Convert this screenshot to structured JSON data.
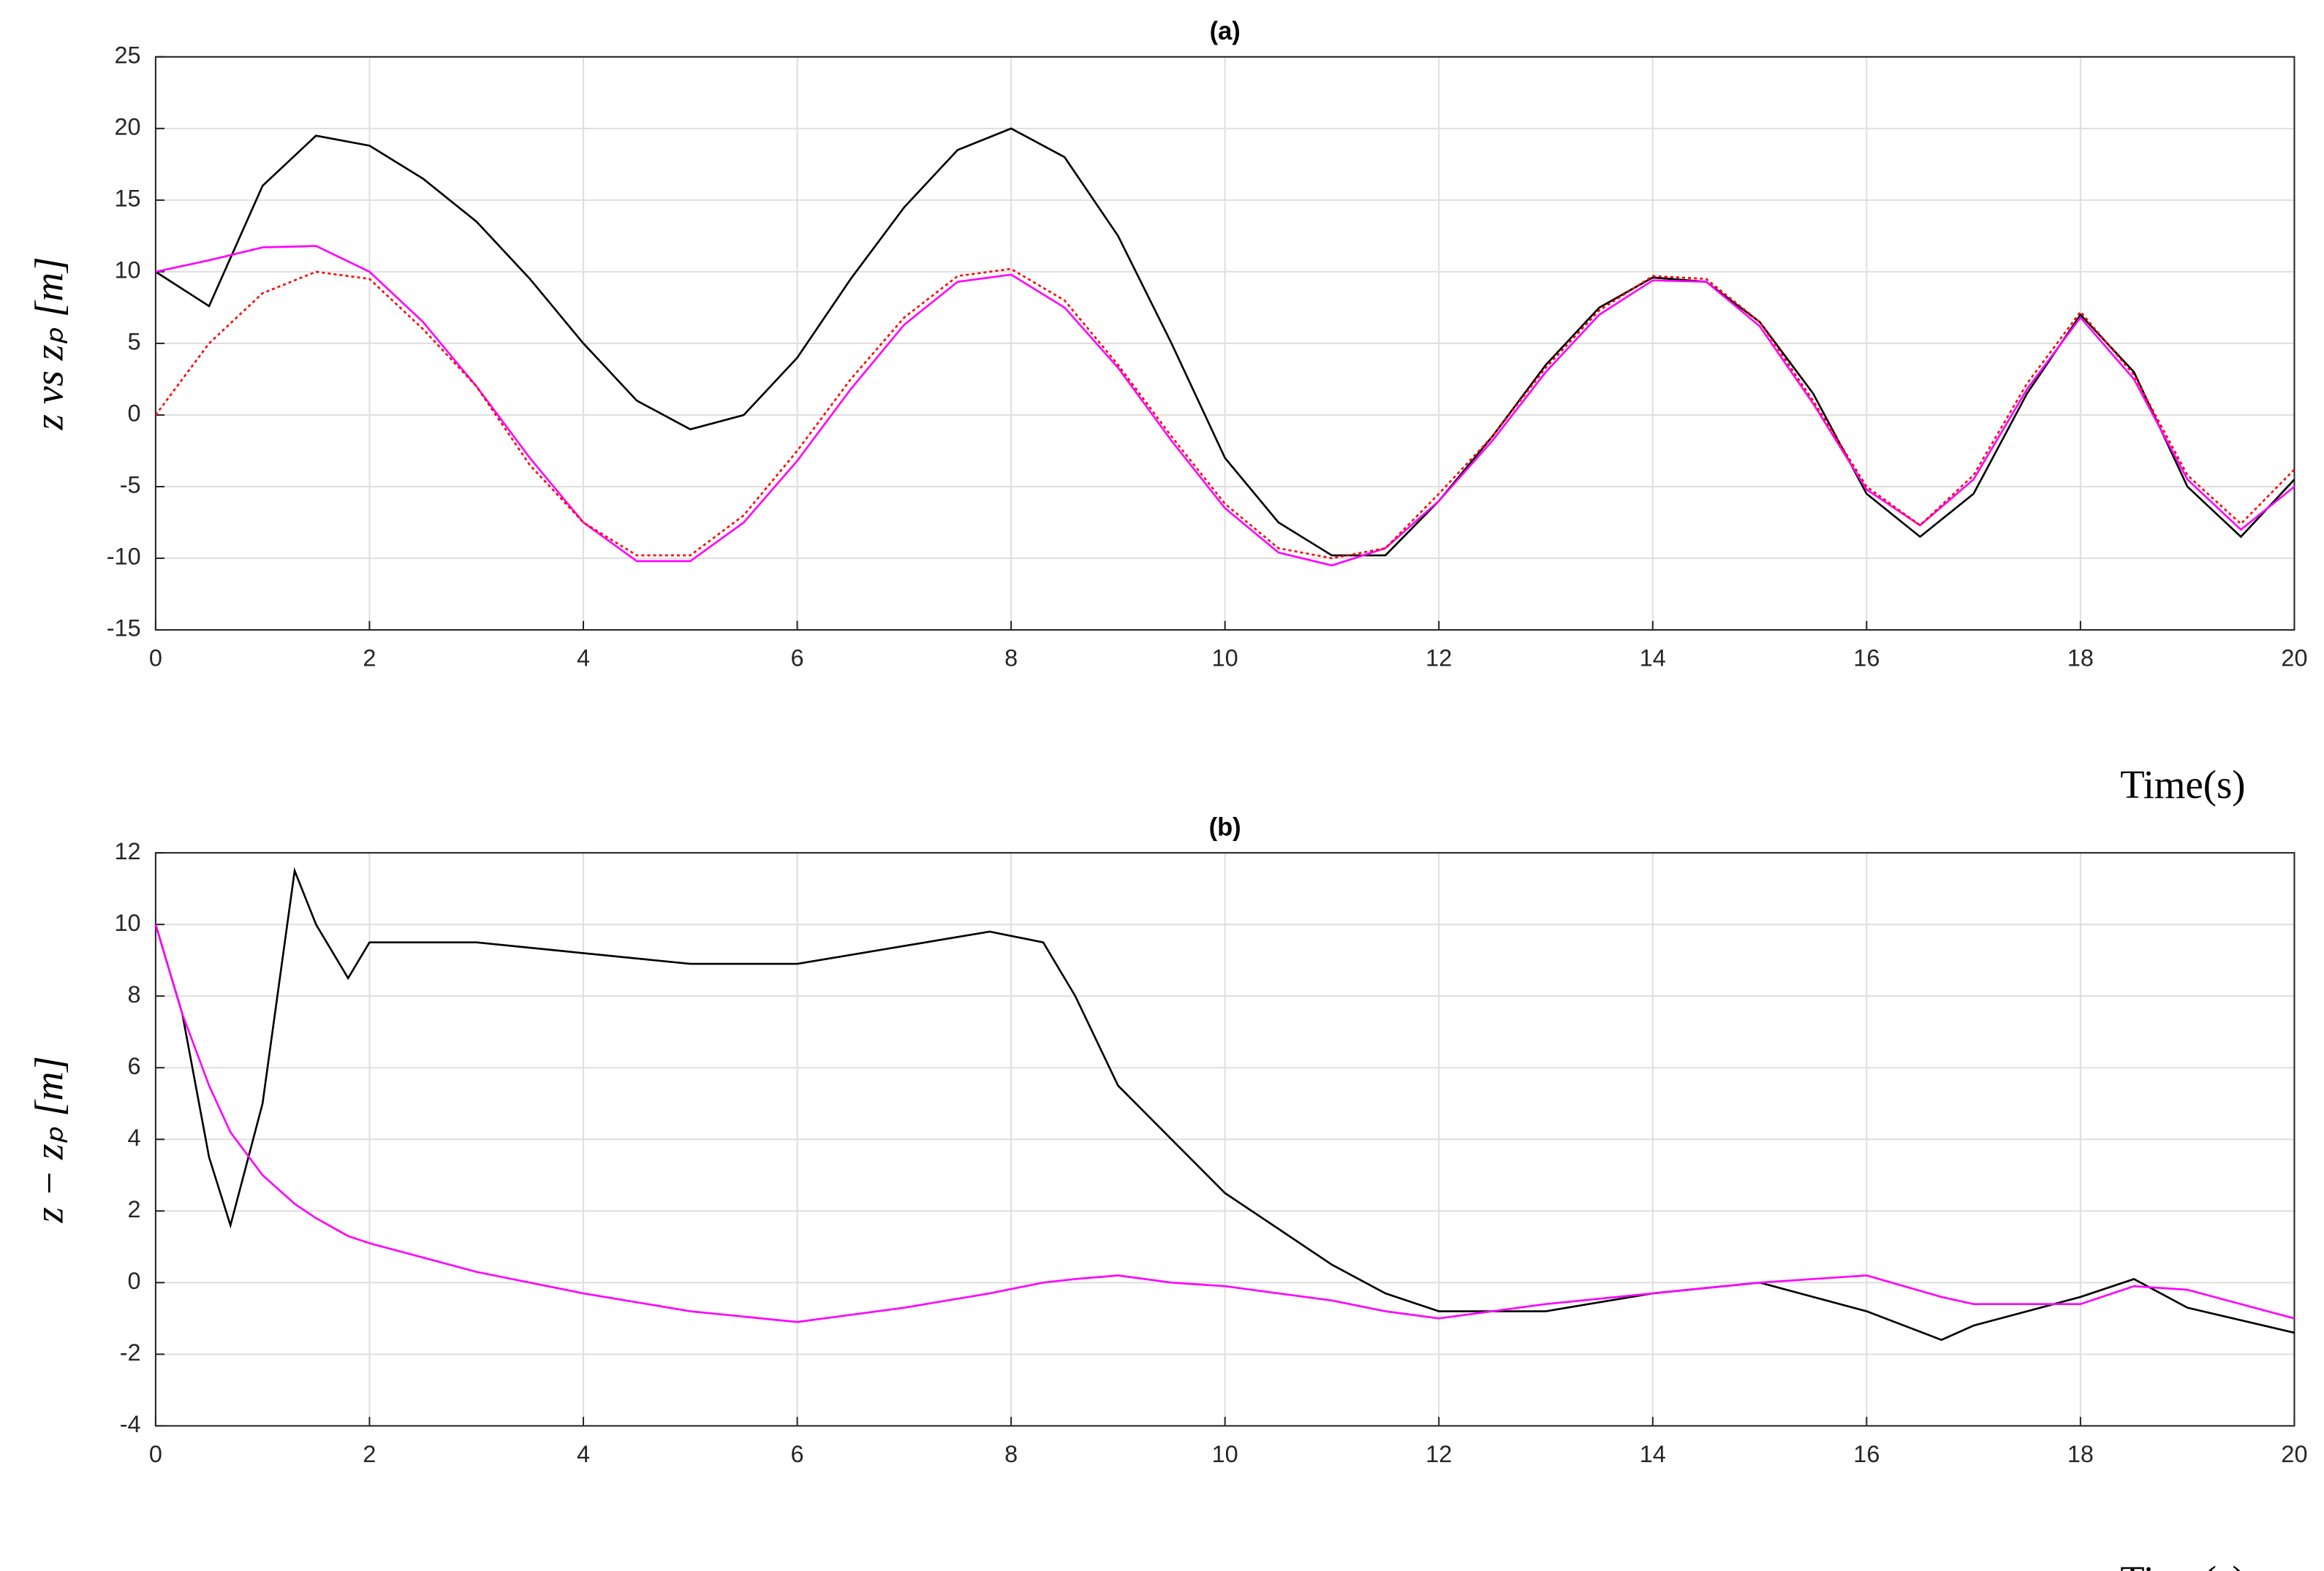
{
  "chart_data": [
    {
      "type": "line",
      "title": "(a)",
      "xlabel": "Time(s)",
      "ylabel": "z  vs  zₚ [m]",
      "x": [
        0,
        0.5,
        1,
        1.5,
        2,
        2.5,
        3,
        3.5,
        4,
        4.5,
        5,
        5.5,
        6,
        6.5,
        7,
        7.5,
        8,
        8.5,
        9,
        9.5,
        10,
        10.5,
        11,
        11.5,
        12,
        12.5,
        13,
        13.5,
        14,
        14.5,
        15,
        15.5,
        16,
        16.5,
        17,
        17.5,
        18,
        18.5,
        19,
        19.5,
        20
      ],
      "series": [
        {
          "color": "#000000",
          "values": [
            10,
            7.6,
            16,
            19.5,
            18.8,
            16.5,
            13.5,
            9.5,
            5.0,
            1.0,
            -1.0,
            0.0,
            4.0,
            9.5,
            14.5,
            18.5,
            20.0,
            18.0,
            12.5,
            5.0,
            -3.0,
            -7.5,
            -9.8,
            -9.8,
            -6,
            -1.5,
            3.5,
            7.5,
            9.6,
            9.3,
            6.5,
            1.5,
            -5.5,
            -8.5,
            -5.5,
            1.5,
            7.0,
            3.0,
            -5.0,
            -8.5,
            -4.5
          ]
        },
        {
          "color": "#ff00ff",
          "values": [
            10,
            10.8,
            11.7,
            11.8,
            10,
            6.5,
            2.0,
            -3.0,
            -7.5,
            -10.2,
            -10.2,
            -7.5,
            -3.2,
            1.8,
            6.3,
            9.3,
            9.8,
            7.5,
            3.3,
            -1.8,
            -6.5,
            -9.6,
            -10.5,
            -9.3,
            -6.0,
            -1.8,
            3.0,
            7.0,
            9.4,
            9.3,
            6.2,
            0.8,
            -5.2,
            -7.7,
            -4.5,
            1.8,
            6.8,
            2.5,
            -4.5,
            -8.0,
            -5.0
          ]
        },
        {
          "color": "#ff0000",
          "linestyle": "dotted",
          "values": [
            0,
            5,
            8.5,
            10,
            9.5,
            6,
            2.0,
            -3.5,
            -7.5,
            -9.8,
            -9.8,
            -7,
            -2.5,
            2.5,
            6.8,
            9.7,
            10.2,
            8,
            3.5,
            -1.5,
            -6.2,
            -9.3,
            -10,
            -9.3,
            -5.5,
            -1.5,
            3.3,
            7.3,
            9.7,
            9.5,
            6.5,
            1.0,
            -5.0,
            -7.7,
            -4.2,
            2.2,
            7.2,
            2.8,
            -4.2,
            -7.6,
            -3.8
          ]
        }
      ],
      "xlim": [
        0,
        20
      ],
      "ylim": [
        -15,
        25
      ],
      "xticks": [
        0,
        2,
        4,
        6,
        8,
        10,
        12,
        14,
        16,
        18,
        20
      ],
      "yticks": [
        -15,
        -10,
        -5,
        0,
        5,
        10,
        15,
        20,
        25
      ],
      "grid": true
    },
    {
      "type": "line",
      "title": "(b)",
      "xlabel": "Time(s)",
      "ylabel": "z − zₚ [m]",
      "x": [
        0,
        0.25,
        0.5,
        0.7,
        1,
        1.3,
        1.5,
        1.8,
        2,
        3,
        4,
        5,
        6,
        7,
        7.8,
        8.3,
        8.6,
        9,
        9.5,
        10,
        10.5,
        11,
        11.5,
        12,
        13,
        14,
        15,
        16,
        16.7,
        17,
        18,
        18.5,
        19,
        20
      ],
      "series": [
        {
          "color": "#000000",
          "values": [
            10,
            7.5,
            3.5,
            1.6,
            5,
            11.5,
            10,
            8.5,
            9.5,
            9.5,
            9.2,
            8.9,
            8.9,
            9.4,
            9.8,
            9.5,
            8,
            5.5,
            4,
            2.5,
            1.5,
            0.5,
            -0.3,
            -0.8,
            -0.8,
            -0.3,
            0,
            -0.8,
            -1.6,
            -1.2,
            -0.4,
            0.1,
            -0.7,
            -1.4
          ]
        },
        {
          "color": "#ff00ff",
          "values": [
            10,
            7.5,
            5.5,
            4.2,
            3.0,
            2.2,
            1.8,
            1.3,
            1.1,
            0.3,
            -0.3,
            -0.8,
            -1.1,
            -0.7,
            -0.3,
            0,
            0.1,
            0.2,
            0,
            -0.1,
            -0.3,
            -0.5,
            -0.8,
            -1.0,
            -0.6,
            -0.3,
            0,
            0.2,
            -0.4,
            -0.6,
            -0.6,
            -0.1,
            -0.2,
            -1.0
          ]
        }
      ],
      "xlim": [
        0,
        20
      ],
      "ylim": [
        -4,
        12
      ],
      "xticks": [
        0,
        2,
        4,
        6,
        8,
        10,
        12,
        14,
        16,
        18,
        20
      ],
      "yticks": [
        -4,
        -2,
        0,
        2,
        4,
        6,
        8,
        10,
        12
      ],
      "grid": true
    }
  ]
}
